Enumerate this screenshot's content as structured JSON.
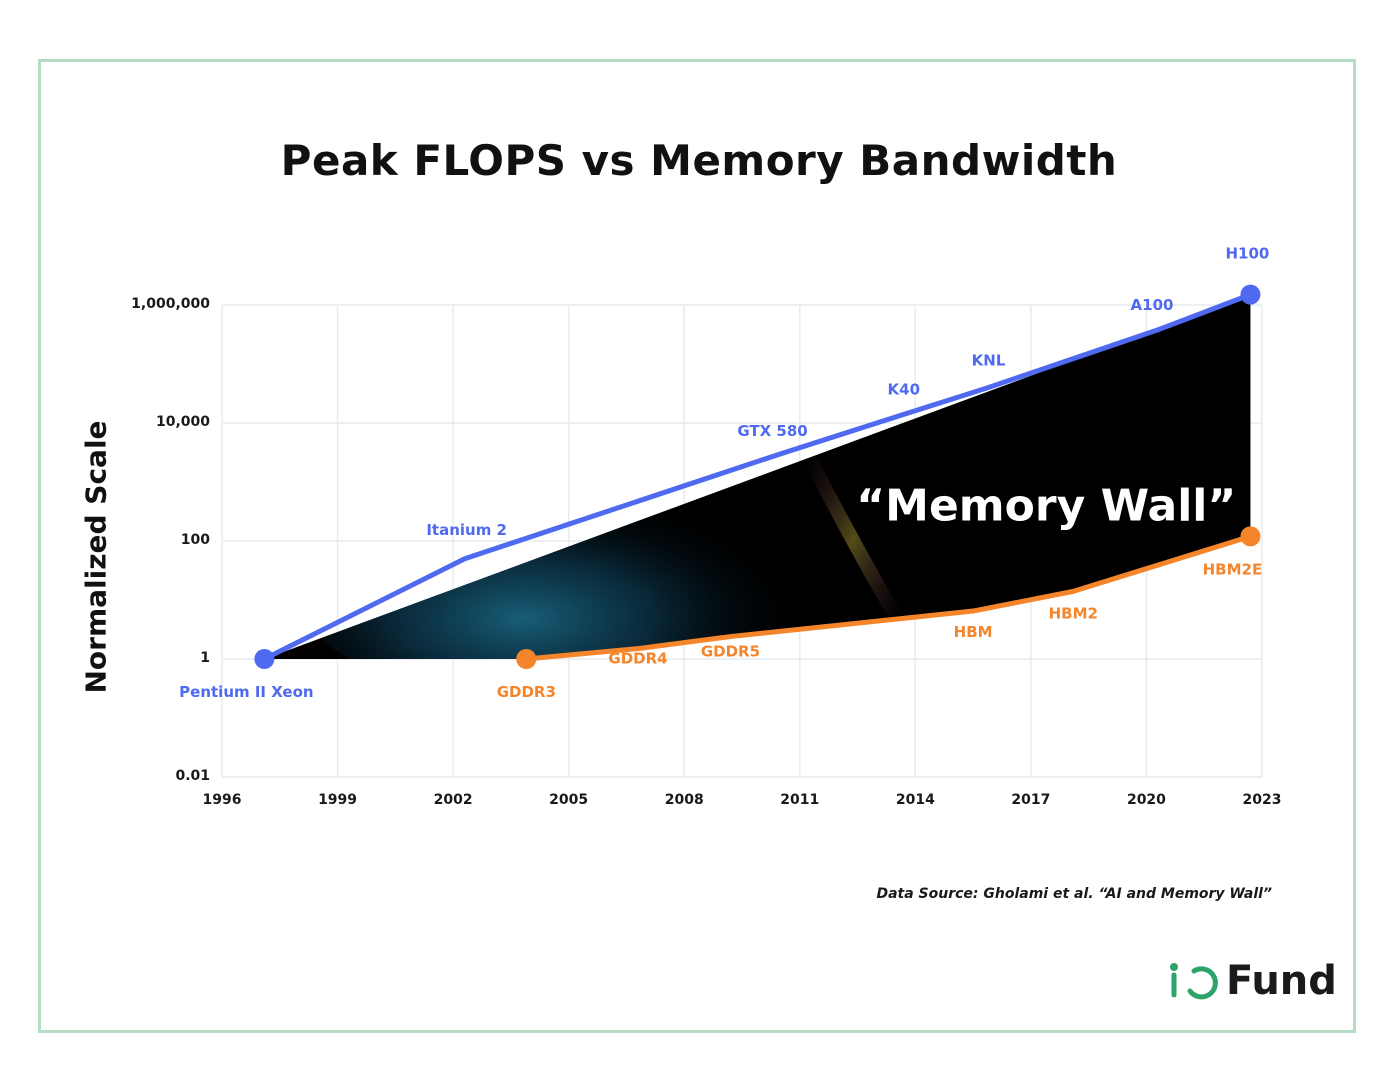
{
  "chart_data": {
    "type": "line",
    "title": "Peak FLOPS vs Memory Bandwidth",
    "ylabel": "Normalized Scale",
    "xlabel": "",
    "y_scale": "log",
    "ylim": [
      0.01,
      1000000
    ],
    "xlim": [
      1996,
      2023
    ],
    "y_ticks": [
      "1,000,000",
      "10,000",
      "100",
      "1",
      "0.01"
    ],
    "y_tick_values": [
      1000000,
      10000,
      100,
      1,
      0.01
    ],
    "x_ticks": [
      "1996",
      "1999",
      "2002",
      "2005",
      "2008",
      "2011",
      "2014",
      "2017",
      "2020",
      "2023"
    ],
    "x_tick_values": [
      1996,
      1999,
      2002,
      2005,
      2008,
      2011,
      2014,
      2017,
      2020,
      2023
    ],
    "grid": true,
    "series": [
      {
        "name": "Peak FLOPS",
        "color": "#4f6af0",
        "points": [
          {
            "label": "Pentium II Xeon",
            "x": 1997.1,
            "y": 1
          },
          {
            "label": "Itanium 2",
            "x": 2002.3,
            "y": 50
          },
          {
            "label": "GTX 580",
            "x": 2010.5,
            "y": 3000
          },
          {
            "label": "K40",
            "x": 2013.7,
            "y": 14000
          },
          {
            "label": "KNL",
            "x": 2015.9,
            "y": 40000
          },
          {
            "label": "A100",
            "x": 2020.3,
            "y": 380000
          },
          {
            "label": "H100",
            "x": 2022.7,
            "y": 1500000
          }
        ],
        "labeled_ends": [
          "Pentium II Xeon",
          "H100"
        ]
      },
      {
        "name": "Memory Bandwidth",
        "color": "#f5852a",
        "points": [
          {
            "label": "GDDR3",
            "x": 2003.9,
            "y": 1
          },
          {
            "label": "GDDR4",
            "x": 2006.8,
            "y": 1.5
          },
          {
            "label": "GDDR5",
            "x": 2009.2,
            "y": 2.4
          },
          {
            "label": "HBM",
            "x": 2015.5,
            "y": 6.5
          },
          {
            "label": "HBM2",
            "x": 2018.1,
            "y": 14
          },
          {
            "label": "HBM2E",
            "x": 2022.7,
            "y": 120
          }
        ],
        "labeled_ends": [
          "GDDR3",
          "HBM2E"
        ]
      }
    ],
    "annotation": "“Memory Wall”"
  },
  "footer": {
    "source": "Data Source: Gholami et al. “AI and Memory Wall”",
    "logo_text": "Fund",
    "logo_accent": "#2ea36a"
  }
}
